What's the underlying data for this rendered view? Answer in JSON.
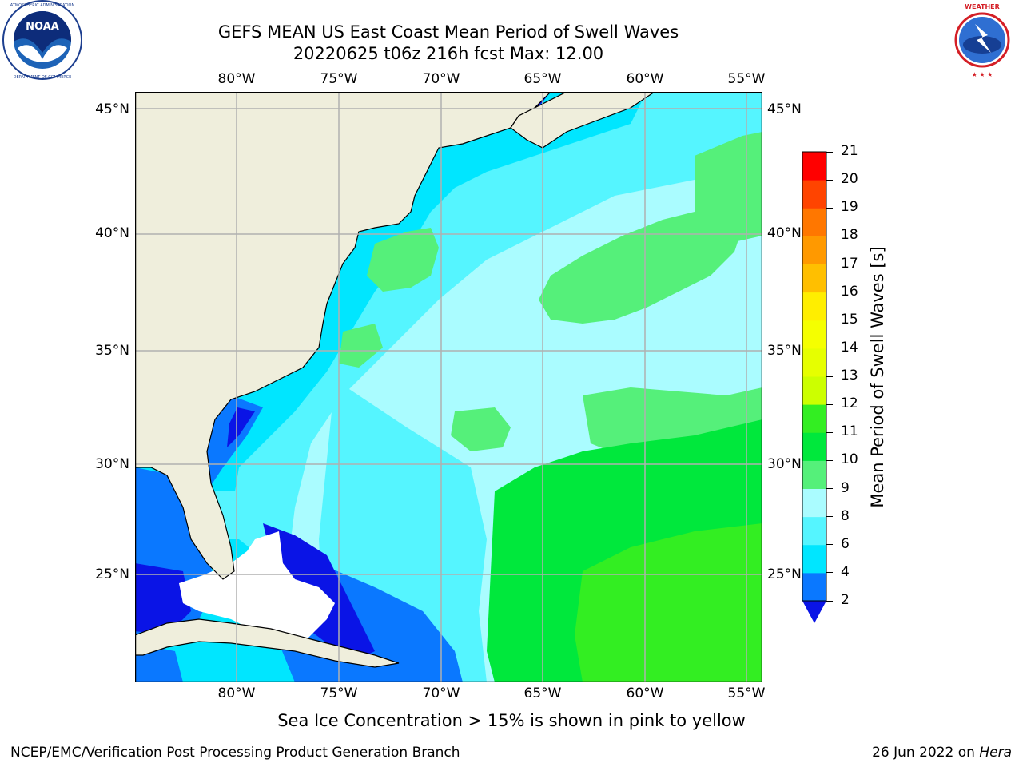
{
  "title": {
    "line1": "GEFS MEAN US East Coast Mean Period of Swell Waves",
    "line2": "20220625 t06z 216h fcst   Max: 12.00"
  },
  "logos": {
    "left": {
      "icon": "noaa-logo",
      "ring_text": "NATIONAL OCEANIC AND ATMOSPHERIC ADMINISTRATION · U.S. DEPARTMENT OF COMMERCE",
      "center_text": "NOAA"
    },
    "right": {
      "icon": "nws-logo",
      "ring_text": "NATIONAL WEATHER SERVICE"
    }
  },
  "map": {
    "lon_labels": [
      "80°W",
      "75°W",
      "70°W",
      "65°W",
      "60°W",
      "55°W"
    ],
    "lat_labels": [
      "45°N",
      "40°N",
      "35°N",
      "30°N",
      "25°N"
    ],
    "grid": true,
    "colors": {
      "land": "#efeedc",
      "excluded": "#ffffff",
      "gridline": "#b0b0b0",
      "coast": "#000000"
    }
  },
  "colorbar": {
    "label": "Mean Period of Swell Waves [s]",
    "ticks": [
      "2",
      "4",
      "6",
      "8",
      "9",
      "10",
      "11",
      "12",
      "13",
      "14",
      "15",
      "16",
      "17",
      "18",
      "19",
      "20",
      "21"
    ],
    "bins": [
      {
        "from": 2,
        "to": 4,
        "color": "#0a78ff"
      },
      {
        "from": 4,
        "to": 6,
        "color": "#00e6ff"
      },
      {
        "from": 6,
        "to": 8,
        "color": "#55f5ff"
      },
      {
        "from": 8,
        "to": 9,
        "color": "#aafcff"
      },
      {
        "from": 9,
        "to": 10,
        "color": "#55f07a"
      },
      {
        "from": 10,
        "to": 11,
        "color": "#00e83c"
      },
      {
        "from": 11,
        "to": 12,
        "color": "#33ee22"
      },
      {
        "from": 12,
        "to": 13,
        "color": "#ccff00"
      },
      {
        "from": 13,
        "to": 14,
        "color": "#e6ff00"
      },
      {
        "from": 14,
        "to": 15,
        "color": "#f5ff00"
      },
      {
        "from": 15,
        "to": 16,
        "color": "#ffee00"
      },
      {
        "from": 16,
        "to": 17,
        "color": "#ffbf00"
      },
      {
        "from": 17,
        "to": 18,
        "color": "#ff9900"
      },
      {
        "from": 18,
        "to": 19,
        "color": "#ff7700"
      },
      {
        "from": 19,
        "to": 20,
        "color": "#ff4400"
      },
      {
        "from": 20,
        "to": 21,
        "color": "#ff0000"
      }
    ],
    "under_color": "#0a14e6"
  },
  "footer": {
    "note": "Sea Ice Concentration > 15% is shown in pink to yellow",
    "credit": "NCEP/EMC/Verification Post Processing Product Generation Branch",
    "date": "26 Jun 2022 on ",
    "machine": "Hera"
  }
}
